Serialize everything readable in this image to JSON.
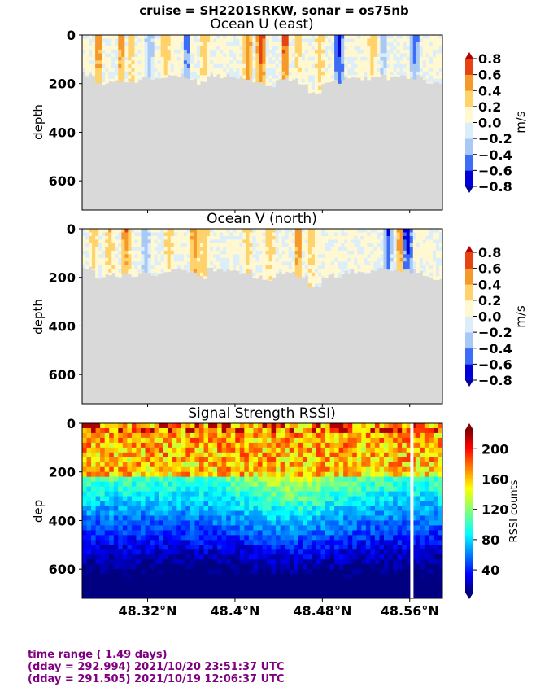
{
  "suptitle": "cruise = SH2201SRKW,  sonar = os75nb",
  "footer": {
    "line1": "time range ( 1.49 days)",
    "line2": "(dday = 292.994) 2021/10/20 23:51:37 UTC",
    "line3": "(dday = 291.505) 2021/10/19 12:06:37 UTC"
  },
  "colors": {
    "nodata": "#d9d9d9",
    "footer_text": "#800080"
  },
  "chart_data": [
    {
      "type": "heatmap",
      "title": "Ocean U (east)",
      "ylabel": "depth",
      "ylim": [
        720,
        0
      ],
      "xlim": [
        48.26,
        48.59
      ],
      "yticks": [
        0,
        200,
        400,
        600
      ],
      "xticks": [
        48.32,
        48.4,
        48.48,
        48.56
      ],
      "colorbar": {
        "label": "m/s",
        "ticks": [
          "0.8",
          "0.6",
          "0.4",
          "0.2",
          "0.0",
          "−0.2",
          "−0.4",
          "−0.6",
          "−0.8"
        ],
        "levels": [
          -0.8,
          -0.6,
          -0.4,
          -0.2,
          0.0,
          0.2,
          0.4,
          0.6,
          0.8
        ],
        "colors": [
          "#0000d8",
          "#3d6df7",
          "#a8c8f5",
          "#dceefa",
          "#fff8d0",
          "#ffd26b",
          "#f59a2a",
          "#e64312"
        ]
      },
      "data_depth_max": [
        160,
        200,
        190,
        190,
        190,
        170,
        185,
        170,
        165,
        175,
        200,
        165,
        170,
        175,
        175,
        200,
        210,
        180,
        185,
        200,
        240,
        195,
        190,
        175,
        180,
        175,
        170,
        175,
        170,
        175,
        190,
        200
      ],
      "strong_features": [
        {
          "x": 48.275,
          "sign": 1,
          "level": 0.5
        },
        {
          "x": 48.296,
          "sign": 1,
          "level": 0.5
        },
        {
          "x": 48.305,
          "sign": 1,
          "level": 0.3
        },
        {
          "x": 48.322,
          "sign": -1,
          "level": 0.3
        },
        {
          "x": 48.336,
          "sign": 1,
          "level": 0.3
        },
        {
          "x": 48.356,
          "sign": -1,
          "level": 0.5
        },
        {
          "x": 48.372,
          "sign": 1,
          "level": 0.3
        },
        {
          "x": 48.412,
          "sign": 1,
          "level": 0.5
        },
        {
          "x": 48.424,
          "sign": 1,
          "level": 0.7
        },
        {
          "x": 48.446,
          "sign": 1,
          "level": 0.7
        },
        {
          "x": 48.458,
          "sign": 1,
          "level": 0.3
        },
        {
          "x": 48.478,
          "sign": 1,
          "level": 0.3
        },
        {
          "x": 48.495,
          "sign": -1,
          "level": 0.7
        },
        {
          "x": 48.526,
          "sign": 1,
          "level": 0.3
        },
        {
          "x": 48.536,
          "sign": -1,
          "level": 0.3
        },
        {
          "x": 48.565,
          "sign": -1,
          "level": 0.5
        }
      ]
    },
    {
      "type": "heatmap",
      "title": "Ocean V (north)",
      "ylabel": "depth",
      "ylim": [
        720,
        0
      ],
      "xlim": [
        48.26,
        48.59
      ],
      "yticks": [
        0,
        200,
        400,
        600
      ],
      "xticks": [
        48.32,
        48.4,
        48.48,
        48.56
      ],
      "colorbar": {
        "label": "m/s",
        "ticks": [
          "0.8",
          "0.6",
          "0.4",
          "0.2",
          "0.0",
          "−0.2",
          "−0.4",
          "−0.6",
          "−0.8"
        ],
        "levels": [
          -0.8,
          -0.6,
          -0.4,
          -0.2,
          0.0,
          0.2,
          0.4,
          0.6,
          0.8
        ],
        "colors": [
          "#0000d8",
          "#3d6df7",
          "#a8c8f5",
          "#dceefa",
          "#fff8d0",
          "#ffd26b",
          "#f59a2a",
          "#e64312"
        ]
      },
      "data_depth_max": [
        160,
        200,
        190,
        190,
        190,
        170,
        185,
        170,
        165,
        175,
        200,
        165,
        170,
        175,
        175,
        200,
        210,
        180,
        185,
        200,
        240,
        195,
        190,
        175,
        180,
        175,
        170,
        175,
        170,
        175,
        190,
        200
      ],
      "strong_features": [
        {
          "x": 48.27,
          "sign": 1,
          "level": 0.3
        },
        {
          "x": 48.285,
          "sign": 1,
          "level": 0.3
        },
        {
          "x": 48.3,
          "sign": 1,
          "level": 0.5
        },
        {
          "x": 48.318,
          "sign": -1,
          "level": 0.3
        },
        {
          "x": 48.34,
          "sign": 1,
          "level": 0.3
        },
        {
          "x": 48.363,
          "sign": 1,
          "level": 0.5
        },
        {
          "x": 48.372,
          "sign": 1,
          "level": 0.3
        },
        {
          "x": 48.412,
          "sign": 1,
          "level": 0.3
        },
        {
          "x": 48.432,
          "sign": 1,
          "level": 0.3
        },
        {
          "x": 48.458,
          "sign": 1,
          "level": 0.5
        },
        {
          "x": 48.47,
          "sign": 1,
          "level": 0.3
        },
        {
          "x": 48.54,
          "sign": -1,
          "level": 0.5
        },
        {
          "x": 48.552,
          "sign": 1,
          "level": 0.5
        },
        {
          "x": 48.558,
          "sign": -1,
          "level": 0.7
        }
      ]
    },
    {
      "type": "heatmap",
      "title": "Signal Strength RSSI)",
      "ylabel": "dep",
      "ylim": [
        720,
        0
      ],
      "xlim": [
        48.26,
        48.59
      ],
      "yticks": [
        0,
        200,
        400,
        600
      ],
      "xticks": [
        48.32,
        48.4,
        48.48,
        48.56
      ],
      "xticklabels": [
        "48.32°N",
        "48.4°N",
        "48.48°N",
        "48.56°N"
      ],
      "colorbar": {
        "label": "RSSI counts",
        "ticks": [
          "200",
          "160",
          "120",
          "80",
          "40"
        ],
        "tick_values": [
          200,
          160,
          120,
          80,
          40
        ],
        "range": [
          10,
          225
        ]
      },
      "gap_x": 48.562
    }
  ]
}
